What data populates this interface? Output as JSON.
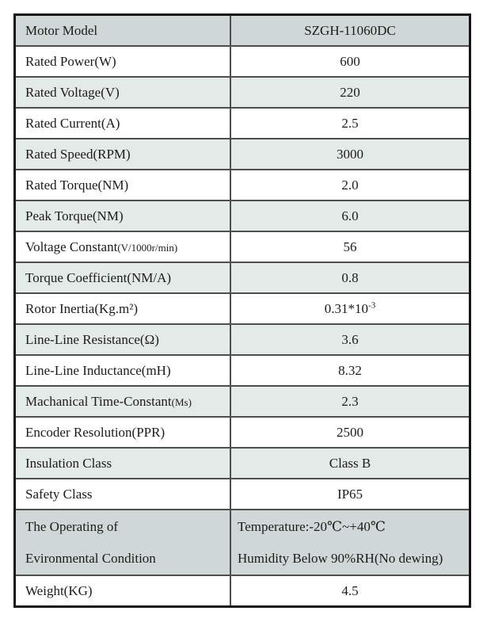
{
  "colors": {
    "shade_dark": "#cfd8d6",
    "shade_light": "#e4eae8",
    "row_white": "#ffffff",
    "border_inner": "#4e4e4e",
    "border_outer": "#161616",
    "text": "#1b1b1b"
  },
  "rows": [
    {
      "label": "Motor Model",
      "value": "SZGH-11060DC",
      "shade": "dark"
    },
    {
      "label": "Rated Power(W)",
      "value": "600",
      "shade": "white"
    },
    {
      "label": "Rated Voltage(V)",
      "value": "220",
      "shade": "light"
    },
    {
      "label": "Rated Current(A)",
      "value": "2.5",
      "shade": "white"
    },
    {
      "label": "Rated Speed(RPM)",
      "value": "3000",
      "shade": "light"
    },
    {
      "label": "Rated Torque(NM)",
      "value": "2.0",
      "shade": "white"
    },
    {
      "label": "Peak Torque(NM)",
      "value": "6.0",
      "shade": "light"
    },
    {
      "label": "Voltage Constant",
      "label_small": "(V/1000r/min)",
      "value": "56",
      "shade": "white"
    },
    {
      "label": "Torque Coefficient(NM/A)",
      "value": "0.8",
      "shade": "light"
    },
    {
      "label": "Rotor Inertia(Kg.m²)",
      "value": "0.31*10",
      "value_sup": "-3",
      "shade": "white"
    },
    {
      "label": "Line-Line Resistance(Ω)",
      "value": "3.6",
      "shade": "light"
    },
    {
      "label": "Line-Line Inductance(mH)",
      "value": "8.32",
      "shade": "white"
    },
    {
      "label": "Machanical Time-Constant",
      "label_small": "(Ms)",
      "value": "2.3",
      "shade": "light"
    },
    {
      "label": "Encoder Resolution(PPR)",
      "value": "2500",
      "shade": "white"
    },
    {
      "label": "Insulation Class",
      "value": "Class B",
      "shade": "light"
    },
    {
      "label": "Safety Class",
      "value": "IP65",
      "shade": "white"
    },
    {
      "type": "double",
      "shade": "dark",
      "label_lines": [
        "The Operating of",
        "Evironmental Condition"
      ],
      "value_lines": [
        "Temperature:-20℃~+40℃",
        "Humidity Below 90%RH(No dewing)"
      ]
    },
    {
      "label": "Weight(KG)",
      "value": "4.5",
      "shade": "white"
    }
  ]
}
